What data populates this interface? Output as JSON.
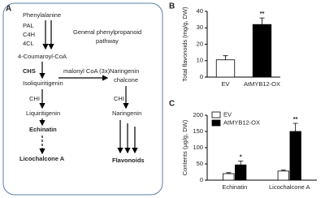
{
  "diagram": {
    "label": "A",
    "start": "Phenylalanine",
    "enzymes1": [
      "PAL",
      "C4H",
      "4CL"
    ],
    "pathway": [
      "General phenylpropanoid",
      "pathway"
    ],
    "coa": "4-Coumaroyl-CoA",
    "chs": "CHS",
    "malonyl": "malonyl CoA (3x)",
    "isoliq": "Isoliquiritigenin",
    "chi_left": "CHI",
    "liq": "Liquiritigenin",
    "echinatin": "Echinatin",
    "licochalcone": "Licochalcone A",
    "naringenin_chalcone": [
      "Naringenin",
      "chalcone"
    ],
    "chi_right": "CHI",
    "naringenin": "Naringenin",
    "flavonoids": "Flavonoids"
  },
  "chart_data": [
    {
      "type": "bar",
      "label": "B",
      "y_label": "Total flavonoids (mg/g, DW)",
      "categories": [
        "EV",
        "AtMYB12-OX"
      ],
      "values": [
        10.5,
        32
      ],
      "errors": [
        2.5,
        4
      ],
      "colors": [
        "#ffffff",
        "#000000"
      ],
      "significance": [
        null,
        "**"
      ],
      "ylim": [
        0,
        40
      ],
      "yticks": [
        0,
        10,
        20,
        30,
        40
      ]
    },
    {
      "type": "grouped-bar",
      "label": "C",
      "y_label": "Contents (μg/g, DW)",
      "categories": [
        "Echinatin",
        "Licochalcone A"
      ],
      "series": [
        {
          "name": "EV",
          "color": "#ffffff",
          "values": [
            20,
            28
          ],
          "errors": [
            3,
            3
          ]
        },
        {
          "name": "AtMYB12-OX",
          "color": "#000000",
          "values": [
            47,
            150
          ],
          "errors": [
            12,
            25
          ],
          "significance": [
            "*",
            "**"
          ]
        }
      ],
      "ylim": [
        0,
        200
      ],
      "yticks": [
        0,
        50,
        100,
        150,
        200
      ],
      "legend": "top-left"
    }
  ]
}
